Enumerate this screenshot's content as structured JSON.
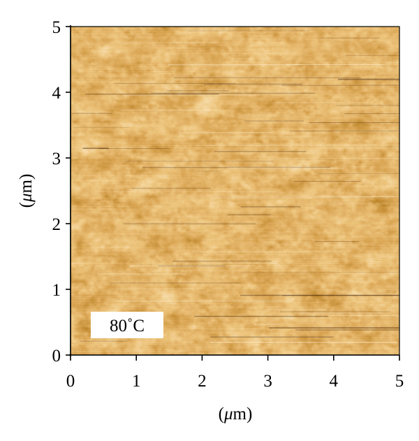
{
  "figure": {
    "annotation": "80˚C",
    "x_axis": {
      "label_prefix": "(",
      "label_mu": "μ",
      "label_suffix": "m)",
      "range": [
        0,
        5
      ],
      "ticks": [
        "0",
        "1",
        "2",
        "3",
        "4",
        "5"
      ]
    },
    "y_axis": {
      "label_prefix": "(",
      "label_mu": "μ",
      "label_suffix": "m)",
      "range": [
        0,
        5
      ],
      "ticks": [
        "0",
        "1",
        "2",
        "3",
        "4",
        "5"
      ]
    },
    "colormap": [
      "#2a0f00",
      "#5a2503",
      "#8a4208",
      "#b8661a",
      "#d98f35",
      "#eeb766",
      "#fbe0a8",
      "#fffbe8"
    ]
  }
}
